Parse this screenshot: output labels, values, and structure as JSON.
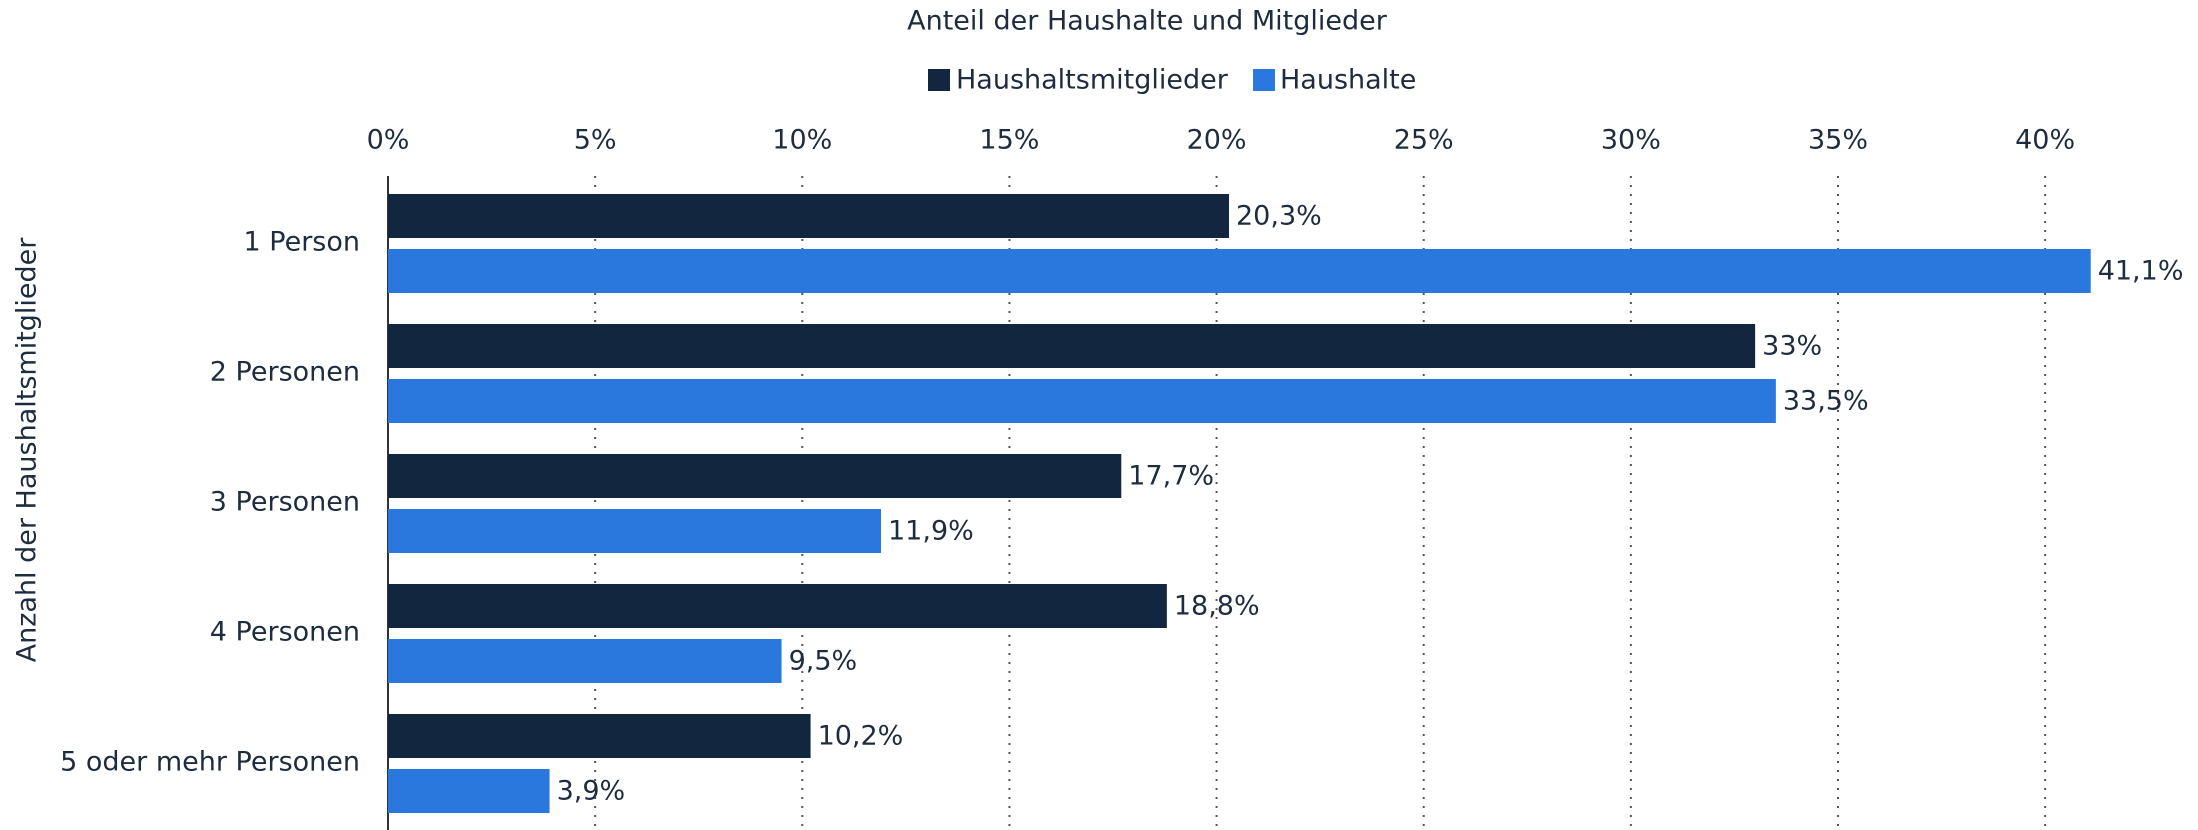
{
  "chart_data": {
    "type": "bar",
    "orientation": "horizontal",
    "title": "Anteil der Haushalte und Mitglieder",
    "y_label": "Anzahl der Haushaltsmitglieder",
    "categories": [
      "1 Person",
      "2 Personen",
      "3 Personen",
      "4 Personen",
      "5 oder mehr Personen"
    ],
    "series": [
      {
        "name": "Haushaltsmitglieder",
        "color": "#13263f",
        "values": [
          20.3,
          33,
          17.7,
          18.8,
          10.2
        ],
        "value_labels": [
          "20,3%",
          "33%",
          "17,7%",
          "18,8%",
          "10,2%"
        ]
      },
      {
        "name": "Haushalte",
        "color": "#2a77de",
        "values": [
          41.1,
          33.5,
          11.9,
          9.5,
          3.9
        ],
        "value_labels": [
          "41,1%",
          "33,5%",
          "11,9%",
          "9,5%",
          "3,9%"
        ]
      }
    ],
    "xlim": [
      0,
      42
    ],
    "xticks": [
      {
        "value": 0,
        "label": "0%"
      },
      {
        "value": 5,
        "label": "5%"
      },
      {
        "value": 10,
        "label": "10%"
      },
      {
        "value": 15,
        "label": "15%"
      },
      {
        "value": 20,
        "label": "20%"
      },
      {
        "value": 25,
        "label": "25%"
      },
      {
        "value": 30,
        "label": "30%"
      },
      {
        "value": 35,
        "label": "35%"
      },
      {
        "value": 40,
        "label": "40%"
      }
    ],
    "grid": true,
    "legend": "top"
  }
}
